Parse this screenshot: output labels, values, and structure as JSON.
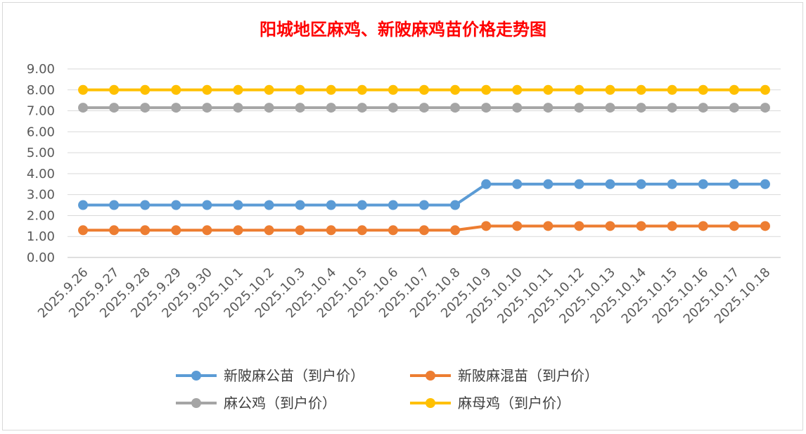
{
  "chart_data": {
    "type": "line",
    "title": "阳城地区麻鸡、新陂麻鸡苗价格走势图",
    "xlabel": "",
    "ylabel": "",
    "ylim": [
      0,
      9
    ],
    "ytick_labels": [
      "0.00",
      "1.00",
      "2.00",
      "3.00",
      "4.00",
      "5.00",
      "6.00",
      "7.00",
      "8.00",
      "9.00"
    ],
    "grid": true,
    "legend_position": "bottom",
    "categories": [
      "2025.9.26",
      "2025.9.27",
      "2025.9.28",
      "2025.9.29",
      "2025.9.30",
      "2025.10.1",
      "2025.10.2",
      "2025.10.3",
      "2025.10.4",
      "2025.10.5",
      "2025.10.6",
      "2025.10.7",
      "2025.10.8",
      "2025.10.9",
      "2025.10.10",
      "2025.10.11",
      "2025.10.12",
      "2025.10.13",
      "2025.10.14",
      "2025.10.15",
      "2025.10.16",
      "2025.10.17",
      "2025.10.18"
    ],
    "series": [
      {
        "name": "新陂麻公苗（到户价）",
        "color": "#5b9bd5",
        "values": [
          2.5,
          2.5,
          2.5,
          2.5,
          2.5,
          2.5,
          2.5,
          2.5,
          2.5,
          2.5,
          2.5,
          2.5,
          2.5,
          3.5,
          3.5,
          3.5,
          3.5,
          3.5,
          3.5,
          3.5,
          3.5,
          3.5,
          3.5
        ]
      },
      {
        "name": "新陂麻混苗（到户价）",
        "color": "#ed7d31",
        "values": [
          1.3,
          1.3,
          1.3,
          1.3,
          1.3,
          1.3,
          1.3,
          1.3,
          1.3,
          1.3,
          1.3,
          1.3,
          1.3,
          1.5,
          1.5,
          1.5,
          1.5,
          1.5,
          1.5,
          1.5,
          1.5,
          1.5,
          1.5
        ]
      },
      {
        "name": "麻公鸡（到户价）",
        "color": "#a5a5a5",
        "values": [
          7.15,
          7.15,
          7.15,
          7.15,
          7.15,
          7.15,
          7.15,
          7.15,
          7.15,
          7.15,
          7.15,
          7.15,
          7.15,
          7.15,
          7.15,
          7.15,
          7.15,
          7.15,
          7.15,
          7.15,
          7.15,
          7.15,
          7.15
        ]
      },
      {
        "name": "麻母鸡（到户价）",
        "color": "#ffc000",
        "values": [
          8,
          8,
          8,
          8,
          8,
          8,
          8,
          8,
          8,
          8,
          8,
          8,
          8,
          8,
          8,
          8,
          8,
          8,
          8,
          8,
          8,
          8,
          8
        ]
      }
    ]
  }
}
